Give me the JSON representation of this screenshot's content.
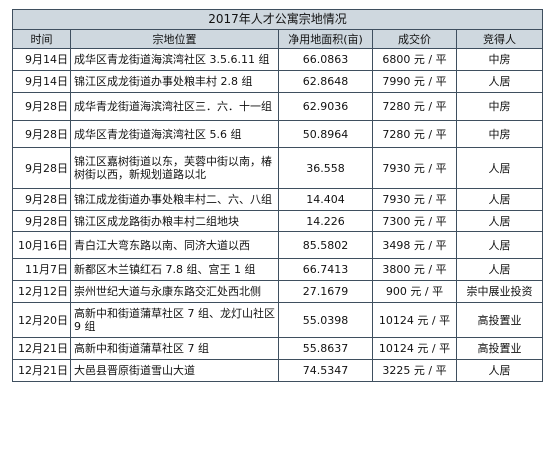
{
  "title": "2017年人才公寓宗地情况",
  "columns": [
    "时间",
    "宗地位置",
    "净用地面积(亩)",
    "成交价",
    "竞得人"
  ],
  "rows": [
    {
      "date": "9月14日",
      "location": "成华区青龙街道海滨湾社区 3.5.6.11 组",
      "area": "66.0863",
      "price": "6800 元 / 平",
      "buyer": "中房"
    },
    {
      "date": "9月14日",
      "location": "锦江区成龙街道办事处粮丰村 2.8 组",
      "area": "62.8648",
      "price": "7990 元 / 平",
      "buyer": "人居"
    },
    {
      "date": "9月28日",
      "location": "成华青龙街道海滨湾社区三．六．十一组",
      "area": "62.9036",
      "price": "7280 元 / 平",
      "buyer": "中房"
    },
    {
      "date": "9月28日",
      "location": "成华区青龙街道海滨湾社区 5.6 组",
      "area": "50.8964",
      "price": "7280 元 / 平",
      "buyer": "中房"
    },
    {
      "date": "9月28日",
      "location": "锦江区嘉树街道以东，芙蓉中街以南，椿树街以西，新规划道路以北",
      "area": "36.558",
      "price": "7930 元 / 平",
      "buyer": "人居"
    },
    {
      "date": "9月28日",
      "location": "锦江成龙街道办事处粮丰村二、六、八组",
      "area": "14.404",
      "price": "7930 元 / 平",
      "buyer": "人居"
    },
    {
      "date": "9月28日",
      "location": "锦江区成龙路街办粮丰村二组地块",
      "area": "14.226",
      "price": "7300 元 / 平",
      "buyer": "人居"
    },
    {
      "date": "10月16日",
      "location": "青白江大弯东路以南、同济大道以西",
      "area": "85.5802",
      "price": "3498 元 / 平",
      "buyer": "人居"
    },
    {
      "date": "11月7日",
      "location": "新都区木兰镇红石 7.8 组、宫王 1 组",
      "area": "66.7413",
      "price": "3800 元 / 平",
      "buyer": "人居"
    },
    {
      "date": "12月12日",
      "location": "崇州世纪大道与永康东路交汇处西北侧",
      "area": "27.1679",
      "price": "900 元 / 平",
      "buyer": "崇中展业投资"
    },
    {
      "date": "12月20日",
      "location": "高新中和街道蒲草社区 7 组、龙灯山社区 9 组",
      "area": "55.0398",
      "price": "10124 元 / 平",
      "buyer": "高投置业"
    },
    {
      "date": "12月21日",
      "location": "高新中和街道蒲草社区 7 组",
      "area": "55.8637",
      "price": "10124 元 / 平",
      "buyer": "高投置业"
    },
    {
      "date": "12月21日",
      "location": "大邑县晋原街道雪山大道",
      "area": "74.5347",
      "price": "3225 元 / 平",
      "buyer": "人居"
    }
  ]
}
